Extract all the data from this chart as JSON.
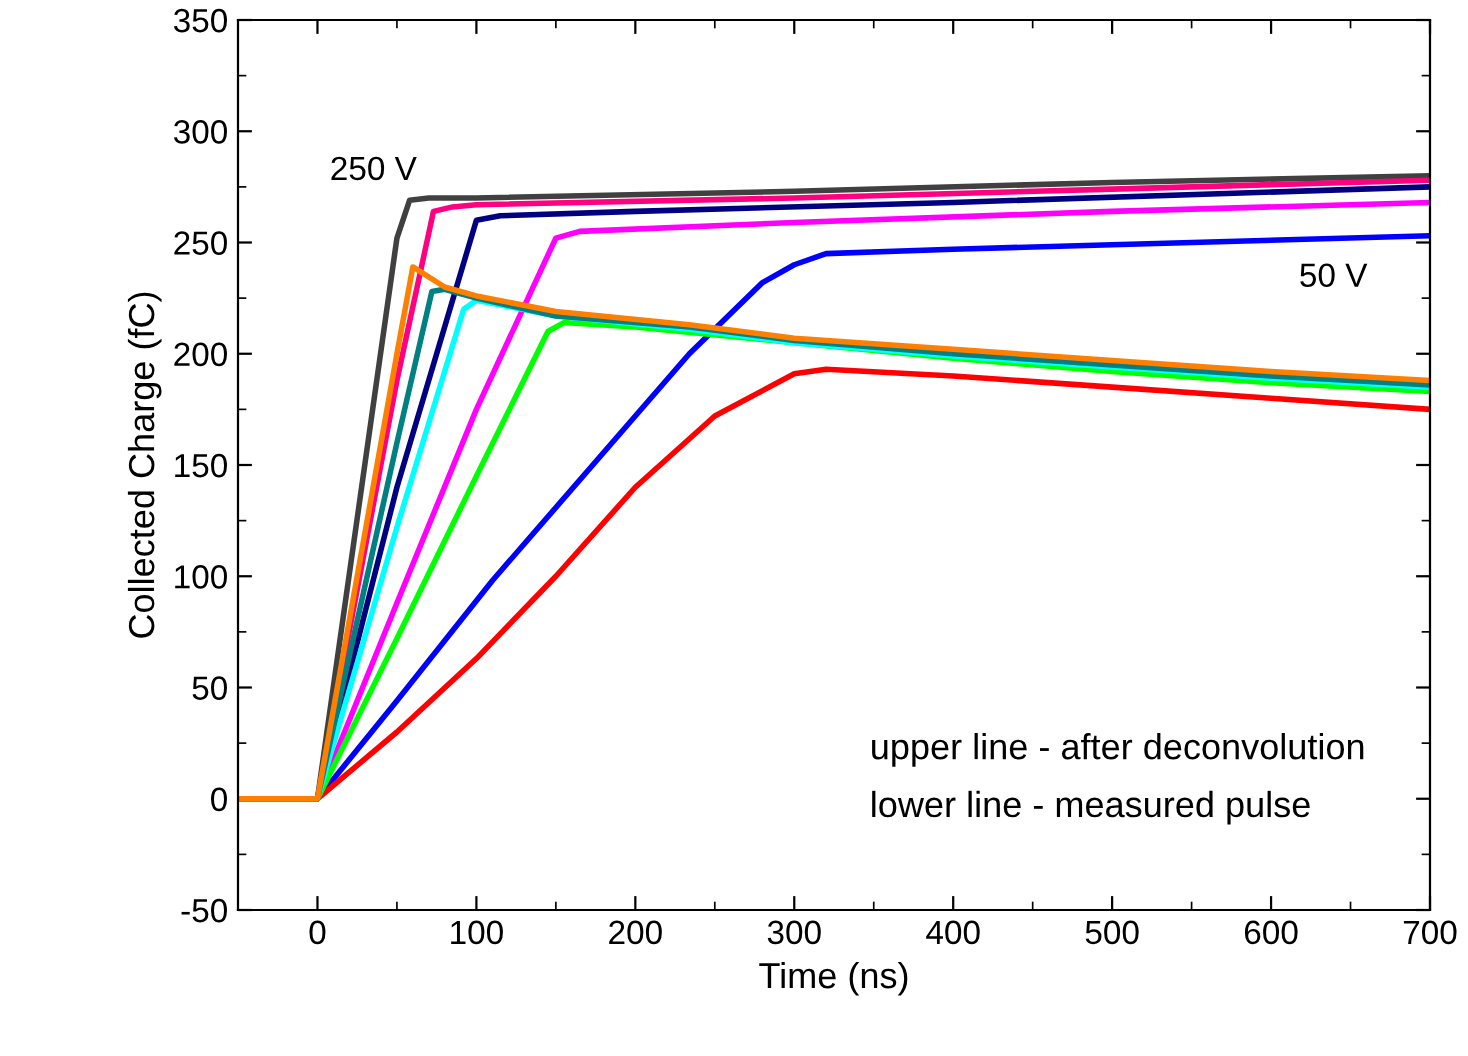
{
  "chart_data": {
    "type": "line",
    "xlabel": "Time (ns)",
    "ylabel": "Collected Charge (fC)",
    "xlim": [
      -50,
      700
    ],
    "xticks": [
      0,
      100,
      200,
      300,
      400,
      500,
      600,
      700
    ],
    "ylim": [
      -50,
      350
    ],
    "yticks": [
      -50,
      0,
      50,
      100,
      150,
      200,
      250,
      300,
      350
    ],
    "grid": false,
    "legend": false,
    "marker": "none",
    "line_style": "solid",
    "series": [
      {
        "color": "#404040",
        "x": [
          -50,
          0,
          50,
          58,
          70,
          100,
          300,
          500,
          700
        ],
        "values": [
          0,
          0,
          252,
          269,
          270,
          270,
          273,
          277,
          280
        ]
      },
      {
        "color": "#ff0080",
        "x": [
          -50,
          0,
          50,
          73,
          85,
          100,
          300,
          500,
          700
        ],
        "values": [
          0,
          0,
          188,
          264,
          266,
          267,
          270,
          274,
          278
        ]
      },
      {
        "color": "#000080",
        "x": [
          -50,
          0,
          50,
          100,
          115,
          200,
          400,
          700
        ],
        "values": [
          0,
          0,
          140,
          260,
          262,
          264,
          268,
          275
        ]
      },
      {
        "color": "#ff00ff",
        "x": [
          -50,
          0,
          50,
          100,
          150,
          165,
          300,
          500,
          700
        ],
        "values": [
          0,
          0,
          88,
          175,
          252,
          255,
          259,
          264,
          268
        ]
      },
      {
        "color": "#0000ff",
        "x": [
          -50,
          0,
          50,
          110,
          200,
          234,
          280,
          300,
          320,
          400,
          500,
          700
        ],
        "values": [
          0,
          0,
          44,
          98,
          172,
          200,
          232,
          240,
          245,
          247,
          249,
          253
        ]
      },
      {
        "color": "#ff0000",
        "x": [
          -50,
          0,
          50,
          100,
          150,
          200,
          250,
          300,
          320,
          400,
          500,
          600,
          700
        ],
        "values": [
          0,
          0,
          30,
          63,
          100,
          140,
          172,
          191,
          193,
          190,
          185,
          180,
          175
        ]
      },
      {
        "color": "#00ff00",
        "x": [
          -50,
          0,
          50,
          100,
          145,
          155,
          200,
          300,
          400,
          500,
          600,
          700
        ],
        "values": [
          0,
          0,
          72,
          145,
          210,
          214,
          212,
          205,
          198,
          192,
          187,
          183
        ]
      },
      {
        "color": "#00ffff",
        "x": [
          -50,
          0,
          50,
          92,
          100,
          150,
          234,
          300,
          400,
          500,
          600,
          700
        ],
        "values": [
          0,
          0,
          122,
          220,
          224,
          217,
          211,
          205,
          199,
          194,
          189,
          185
        ]
      },
      {
        "color": "#008080",
        "x": [
          -50,
          0,
          50,
          72,
          80,
          100,
          150,
          234,
          300,
          400,
          500,
          600,
          700
        ],
        "values": [
          0,
          0,
          160,
          228,
          229,
          225,
          217,
          212,
          206,
          200,
          195,
          190,
          186
        ]
      },
      {
        "color": "#ff8000",
        "x": [
          -50,
          0,
          50,
          60,
          80,
          100,
          150,
          234,
          300,
          400,
          500,
          600,
          700
        ],
        "values": [
          0,
          0,
          200,
          239,
          230,
          226,
          219,
          213,
          207,
          202,
          197,
          192,
          188
        ]
      }
    ],
    "annotations": [
      "250 V",
      "50 V",
      "upper line - after deconvolution",
      "lower line - measured pulse"
    ]
  }
}
